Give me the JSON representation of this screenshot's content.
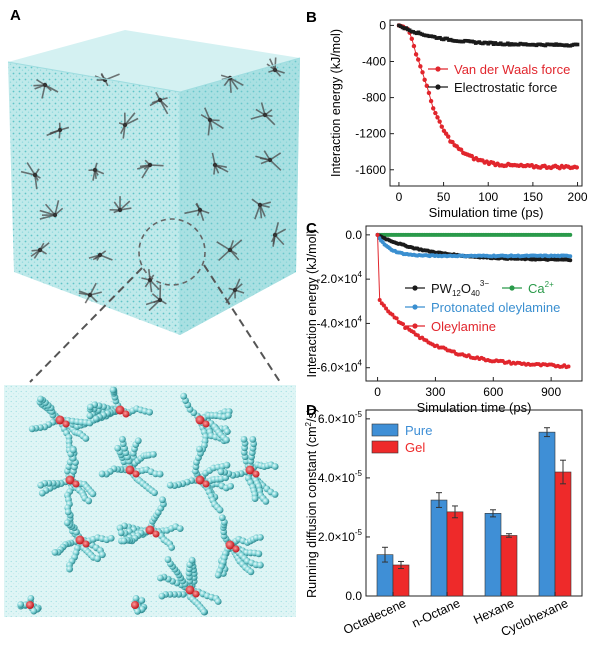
{
  "panels": {
    "a": "A",
    "b": "B",
    "c": "C",
    "d": "D"
  },
  "colors": {
    "red": "#e1262d",
    "black": "#1a1a1a",
    "blue": "#3a8fd0",
    "green": "#2a9a4a",
    "cyan": "#7fd3d6",
    "cyanDark": "#2e8a90",
    "bar_pure": "#3f8fd6",
    "bar_gel": "#ee2a2a"
  },
  "chart_data": [
    {
      "id": "b",
      "type": "scatter",
      "xlabel": "Simulation time (ps)",
      "ylabel": "Interaction energy (kJ/mol)",
      "xlim": [
        -10,
        205
      ],
      "ylim": [
        -1780,
        60
      ],
      "xticks": [
        0,
        50,
        100,
        150,
        200
      ],
      "yticks": [
        0,
        -400,
        -800,
        -1200,
        -1600
      ],
      "ytick_labels": [
        "0",
        "-400",
        "-800",
        "-1200",
        "-1600"
      ],
      "legend_position": "middle",
      "series": [
        {
          "name": "Van der Waals force",
          "color": "#e1262d",
          "model": "vdw"
        },
        {
          "name": "Electrostatic force",
          "color": "#1a1a1a",
          "model": "elec"
        }
      ]
    },
    {
      "id": "c",
      "type": "scatter",
      "xlabel": "Simulation time (ps)",
      "ylabel": "Interaction energy (kJ/mol)",
      "xlim": [
        -60,
        1060
      ],
      "ylim": [
        -66000,
        4000
      ],
      "xticks": [
        0,
        300,
        600,
        900
      ],
      "yticks": [
        0,
        -20000,
        -40000,
        -60000
      ],
      "ytick_labels": [
        "0.0",
        "-2.0×10",
        "-4.0×10",
        "-6.0×10"
      ],
      "ytick_exp": "4",
      "legend_position": "middle",
      "series": [
        {
          "name": "PW",
          "sub1": "12",
          "mid": "O",
          "sub2": "40",
          "sup": "3−",
          "color": "#1a1a1a",
          "model": "pw"
        },
        {
          "name": "Ca",
          "sup": "2+",
          "color": "#2a9a4a",
          "model": "ca"
        },
        {
          "name": "Protonated oleylamine",
          "color": "#3a8fd0",
          "model": "prot"
        },
        {
          "name": "Oleylamine",
          "color": "#e1262d",
          "model": "oley"
        }
      ]
    },
    {
      "id": "d",
      "type": "bar",
      "ylabel": "Running diffusion constant (cm",
      "ylabel_sup": "2",
      "ylabel_tail": "/s)",
      "categories": [
        "Octadecene",
        "n-Octane",
        "Hexane",
        "Cyclohexane"
      ],
      "ylim": [
        0,
        6.3e-05
      ],
      "yticks": [
        0,
        2e-05,
        4e-05,
        6e-05
      ],
      "ytick_labels": [
        "0.0",
        "2.0×10",
        "4.0×10",
        "6.0×10"
      ],
      "ytick_exp": "-5",
      "legend_position": "top-left",
      "series": [
        {
          "name": "Pure",
          "color": "#3f8fd6",
          "values": [
            1.4e-05,
            3.25e-05,
            2.8e-05,
            5.55e-05
          ],
          "errors": [
            2.5e-06,
            2.5e-06,
            1.2e-06,
            1.5e-06
          ]
        },
        {
          "name": "Gel",
          "color": "#ee2a2a",
          "values": [
            1.05e-05,
            2.85e-05,
            2.05e-05,
            4.2e-05
          ],
          "errors": [
            1.2e-06,
            2e-06,
            6e-07,
            4e-06
          ]
        }
      ]
    }
  ]
}
